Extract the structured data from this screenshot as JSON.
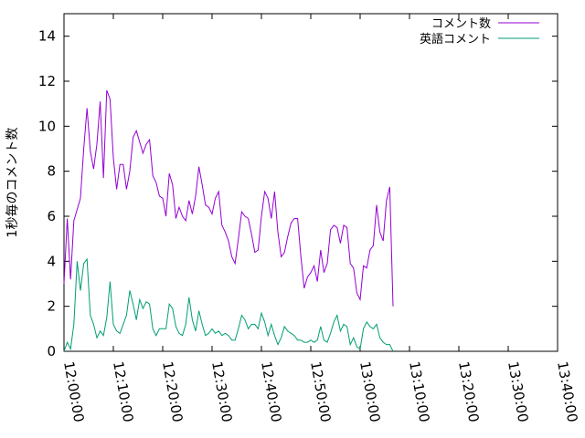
{
  "chart_data": {
    "type": "line",
    "title": "",
    "xlabel": "",
    "ylabel": "1秒毎のコメント数",
    "xlim": [
      "12:00:00",
      "13:40:00"
    ],
    "ylim": [
      0,
      15
    ],
    "x_ticks": [
      "12:00:00",
      "12:10:00",
      "12:20:00",
      "12:30:00",
      "12:40:00",
      "12:50:00",
      "13:00:00",
      "13:10:00",
      "13:20:00",
      "13:30:00",
      "13:40:00"
    ],
    "y_ticks": [
      "0",
      "2",
      "4",
      "6",
      "8",
      "10",
      "12",
      "14"
    ],
    "grid": false,
    "legend_position": "top-right",
    "series": [
      {
        "name": "コメント数",
        "color": "#9400d3",
        "points": [
          [
            "12:00:00",
            3.0
          ],
          [
            "12:00:40",
            5.9
          ],
          [
            "12:01:20",
            3.2
          ],
          [
            "12:02:00",
            5.8
          ],
          [
            "12:02:40",
            6.3
          ],
          [
            "12:03:20",
            6.8
          ],
          [
            "12:04:00",
            9.0
          ],
          [
            "12:04:40",
            10.8
          ],
          [
            "12:05:20",
            8.9
          ],
          [
            "12:06:00",
            8.1
          ],
          [
            "12:06:40",
            9.2
          ],
          [
            "12:07:20",
            11.1
          ],
          [
            "12:08:00",
            7.7
          ],
          [
            "12:08:40",
            11.6
          ],
          [
            "12:09:20",
            11.2
          ],
          [
            "12:10:00",
            8.6
          ],
          [
            "12:10:40",
            7.2
          ],
          [
            "12:11:20",
            8.3
          ],
          [
            "12:12:00",
            8.3
          ],
          [
            "12:12:40",
            7.2
          ],
          [
            "12:13:20",
            8.0
          ],
          [
            "12:14:00",
            9.5
          ],
          [
            "12:14:40",
            9.8
          ],
          [
            "12:15:20",
            9.3
          ],
          [
            "12:16:00",
            8.8
          ],
          [
            "12:16:40",
            9.2
          ],
          [
            "12:17:20",
            9.4
          ],
          [
            "12:18:00",
            7.8
          ],
          [
            "12:18:40",
            7.5
          ],
          [
            "12:19:20",
            6.9
          ],
          [
            "12:20:00",
            6.8
          ],
          [
            "12:20:40",
            6.0
          ],
          [
            "12:21:20",
            7.9
          ],
          [
            "12:22:00",
            7.4
          ],
          [
            "12:22:40",
            5.9
          ],
          [
            "12:23:20",
            6.4
          ],
          [
            "12:24:00",
            6.0
          ],
          [
            "12:24:40",
            5.8
          ],
          [
            "12:25:20",
            6.7
          ],
          [
            "12:26:00",
            6.1
          ],
          [
            "12:26:40",
            6.9
          ],
          [
            "12:27:20",
            8.2
          ],
          [
            "12:28:00",
            7.4
          ],
          [
            "12:28:40",
            6.5
          ],
          [
            "12:29:20",
            6.4
          ],
          [
            "12:30:00",
            6.1
          ],
          [
            "12:30:40",
            6.8
          ],
          [
            "12:31:20",
            7.1
          ],
          [
            "12:32:00",
            5.6
          ],
          [
            "12:32:40",
            5.3
          ],
          [
            "12:33:20",
            4.9
          ],
          [
            "12:34:00",
            4.2
          ],
          [
            "12:34:40",
            3.9
          ],
          [
            "12:35:20",
            5.0
          ],
          [
            "12:36:00",
            6.2
          ],
          [
            "12:36:40",
            6.0
          ],
          [
            "12:37:20",
            5.9
          ],
          [
            "12:38:00",
            5.2
          ],
          [
            "12:38:40",
            4.4
          ],
          [
            "12:39:20",
            4.5
          ],
          [
            "12:40:00",
            6.0
          ],
          [
            "12:40:40",
            7.1
          ],
          [
            "12:41:20",
            6.8
          ],
          [
            "12:42:00",
            5.9
          ],
          [
            "12:42:40",
            7.1
          ],
          [
            "12:43:20",
            5.3
          ],
          [
            "12:44:00",
            4.2
          ],
          [
            "12:44:40",
            4.4
          ],
          [
            "12:45:20",
            5.1
          ],
          [
            "12:46:00",
            5.7
          ],
          [
            "12:46:40",
            5.9
          ],
          [
            "12:47:20",
            5.9
          ],
          [
            "12:48:00",
            4.2
          ],
          [
            "12:48:40",
            2.8
          ],
          [
            "12:49:20",
            3.3
          ],
          [
            "12:50:00",
            3.5
          ],
          [
            "12:50:40",
            3.8
          ],
          [
            "12:51:20",
            3.1
          ],
          [
            "12:52:00",
            4.5
          ],
          [
            "12:52:40",
            3.5
          ],
          [
            "12:53:20",
            3.9
          ],
          [
            "12:54:00",
            5.4
          ],
          [
            "12:54:40",
            5.6
          ],
          [
            "12:55:20",
            5.5
          ],
          [
            "12:56:00",
            4.8
          ],
          [
            "12:56:40",
            5.6
          ],
          [
            "12:57:20",
            5.5
          ],
          [
            "12:58:00",
            3.9
          ],
          [
            "12:58:40",
            3.7
          ],
          [
            "12:59:20",
            2.6
          ],
          [
            "13:00:00",
            2.3
          ],
          [
            "13:00:40",
            3.8
          ],
          [
            "13:01:20",
            3.7
          ],
          [
            "13:02:00",
            4.5
          ],
          [
            "13:02:40",
            4.7
          ],
          [
            "13:03:20",
            6.5
          ],
          [
            "13:04:00",
            5.3
          ],
          [
            "13:04:40",
            4.9
          ],
          [
            "13:05:20",
            6.7
          ],
          [
            "13:06:00",
            7.3
          ],
          [
            "13:06:40",
            2.0
          ]
        ]
      },
      {
        "name": "英語コメント",
        "color": "#009e73",
        "points": [
          [
            "12:00:00",
            0.0
          ],
          [
            "12:00:40",
            0.4
          ],
          [
            "12:01:20",
            0.1
          ],
          [
            "12:02:00",
            1.2
          ],
          [
            "12:02:40",
            4.0
          ],
          [
            "12:03:20",
            2.7
          ],
          [
            "12:04:00",
            3.9
          ],
          [
            "12:04:40",
            4.1
          ],
          [
            "12:05:20",
            1.6
          ],
          [
            "12:06:00",
            1.2
          ],
          [
            "12:06:40",
            0.6
          ],
          [
            "12:07:20",
            0.9
          ],
          [
            "12:08:00",
            0.7
          ],
          [
            "12:08:40",
            1.5
          ],
          [
            "12:09:20",
            3.1
          ],
          [
            "12:10:00",
            1.2
          ],
          [
            "12:10:40",
            0.9
          ],
          [
            "12:11:20",
            0.8
          ],
          [
            "12:12:00",
            1.2
          ],
          [
            "12:12:40",
            1.6
          ],
          [
            "12:13:20",
            2.7
          ],
          [
            "12:14:00",
            2.1
          ],
          [
            "12:14:40",
            1.4
          ],
          [
            "12:15:20",
            2.3
          ],
          [
            "12:16:00",
            1.9
          ],
          [
            "12:16:40",
            2.2
          ],
          [
            "12:17:20",
            2.1
          ],
          [
            "12:18:00",
            1.0
          ],
          [
            "12:18:40",
            0.7
          ],
          [
            "12:19:20",
            1.0
          ],
          [
            "12:20:00",
            1.0
          ],
          [
            "12:20:40",
            1.0
          ],
          [
            "12:21:20",
            2.1
          ],
          [
            "12:22:00",
            1.9
          ],
          [
            "12:22:40",
            1.1
          ],
          [
            "12:23:20",
            0.8
          ],
          [
            "12:24:00",
            0.7
          ],
          [
            "12:24:40",
            1.2
          ],
          [
            "12:25:20",
            2.4
          ],
          [
            "12:26:00",
            1.4
          ],
          [
            "12:26:40",
            0.9
          ],
          [
            "12:27:20",
            1.8
          ],
          [
            "12:28:00",
            1.2
          ],
          [
            "12:28:40",
            0.7
          ],
          [
            "12:29:20",
            0.8
          ],
          [
            "12:30:00",
            1.0
          ],
          [
            "12:30:40",
            0.8
          ],
          [
            "12:31:20",
            0.9
          ],
          [
            "12:32:00",
            0.7
          ],
          [
            "12:32:40",
            0.8
          ],
          [
            "12:33:20",
            0.7
          ],
          [
            "12:34:00",
            0.5
          ],
          [
            "12:34:40",
            0.5
          ],
          [
            "12:35:20",
            1.0
          ],
          [
            "12:36:00",
            1.6
          ],
          [
            "12:36:40",
            1.4
          ],
          [
            "12:37:20",
            1.0
          ],
          [
            "12:38:00",
            1.2
          ],
          [
            "12:38:40",
            1.2
          ],
          [
            "12:39:20",
            1.0
          ],
          [
            "12:40:00",
            1.7
          ],
          [
            "12:40:40",
            1.3
          ],
          [
            "12:41:20",
            0.7
          ],
          [
            "12:42:00",
            1.2
          ],
          [
            "12:42:40",
            0.7
          ],
          [
            "12:43:20",
            0.3
          ],
          [
            "12:44:00",
            0.6
          ],
          [
            "12:44:40",
            1.1
          ],
          [
            "12:45:20",
            0.9
          ],
          [
            "12:46:00",
            0.8
          ],
          [
            "12:46:40",
            0.7
          ],
          [
            "12:47:20",
            0.5
          ],
          [
            "12:48:00",
            0.5
          ],
          [
            "12:48:40",
            0.4
          ],
          [
            "12:49:20",
            0.4
          ],
          [
            "12:50:00",
            0.5
          ],
          [
            "12:50:40",
            0.4
          ],
          [
            "12:51:20",
            0.5
          ],
          [
            "12:52:00",
            1.1
          ],
          [
            "12:52:40",
            0.5
          ],
          [
            "12:53:20",
            0.4
          ],
          [
            "12:54:00",
            0.8
          ],
          [
            "12:54:40",
            1.3
          ],
          [
            "12:55:20",
            1.6
          ],
          [
            "12:56:00",
            0.9
          ],
          [
            "12:56:40",
            1.2
          ],
          [
            "12:57:20",
            1.1
          ],
          [
            "12:58:00",
            0.3
          ],
          [
            "12:58:40",
            0.6
          ],
          [
            "12:59:20",
            0.2
          ],
          [
            "13:00:00",
            0.1
          ],
          [
            "13:00:40",
            1.0
          ],
          [
            "13:01:20",
            1.3
          ],
          [
            "13:02:00",
            1.1
          ],
          [
            "13:02:40",
            1.0
          ],
          [
            "13:03:20",
            1.2
          ],
          [
            "13:04:00",
            0.6
          ],
          [
            "13:04:40",
            0.4
          ],
          [
            "13:05:20",
            0.3
          ],
          [
            "13:06:00",
            0.3
          ],
          [
            "13:06:40",
            0.0
          ]
        ]
      }
    ]
  }
}
